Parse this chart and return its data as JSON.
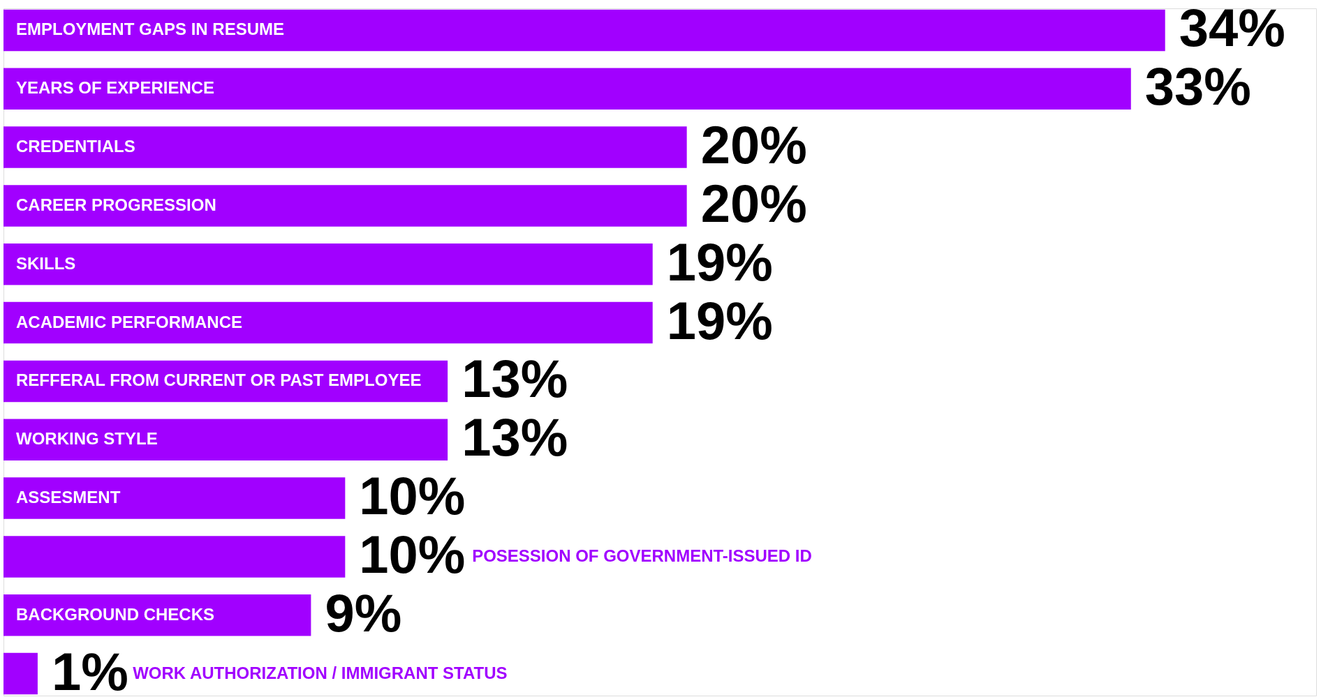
{
  "chart_data": {
    "type": "bar",
    "orientation": "horizontal",
    "categories": [
      "EMPLOYMENT GAPS IN RESUME",
      "YEARS OF EXPERIENCE",
      "CREDENTIALS",
      "CAREER PROGRESSION",
      "SKILLS",
      "ACADEMIC PERFORMANCE",
      "REFFERAL FROM CURRENT OR PAST EMPLOYEE",
      "WORKING STYLE",
      "ASSESMENT",
      "POSESSION OF GOVERNMENT-ISSUED ID",
      "BACKGROUND CHECKS",
      "WORK AUTHORIZATION / IMMIGRANT STATUS"
    ],
    "values": [
      34,
      33,
      20,
      20,
      19,
      19,
      13,
      13,
      10,
      10,
      9,
      1
    ],
    "value_labels": [
      "34%",
      "33%",
      "20%",
      "20%",
      "19%",
      "19%",
      "13%",
      "13%",
      "10%",
      "10%",
      "9%",
      "1%"
    ],
    "color": "#a100ff"
  }
}
